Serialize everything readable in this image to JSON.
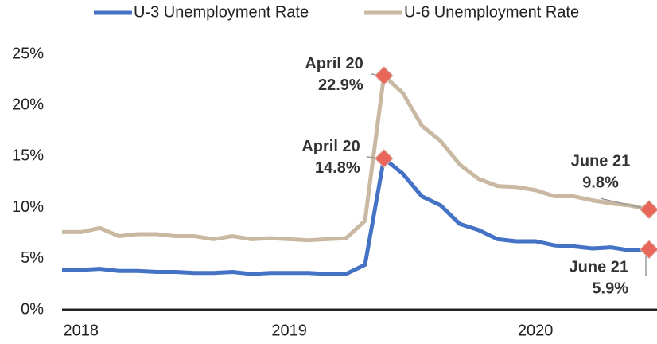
{
  "chart_data": {
    "type": "line",
    "categories": [
      null,
      "2018",
      null,
      null,
      null,
      null,
      null,
      null,
      null,
      null,
      null,
      null,
      "2019",
      null,
      null,
      null,
      null,
      null,
      null,
      null,
      null,
      null,
      null,
      null,
      null,
      "2020",
      null,
      null,
      null,
      null,
      null,
      null
    ],
    "series": [
      {
        "name": "U-3 Unemployment Rate",
        "color": "#4472c4",
        "values": [
          3.9,
          3.9,
          4.0,
          3.8,
          3.8,
          3.7,
          3.7,
          3.6,
          3.6,
          3.7,
          3.5,
          3.6,
          3.6,
          3.6,
          3.5,
          3.5,
          4.4,
          14.8,
          13.3,
          11.1,
          10.2,
          8.4,
          7.8,
          6.9,
          6.7,
          6.7,
          6.3,
          6.2,
          6.0,
          6.1,
          5.8,
          5.9
        ],
        "point_labels": [
          null,
          null,
          null,
          null,
          null,
          null,
          null,
          null,
          null,
          null,
          null,
          null,
          null,
          null,
          null,
          null,
          null,
          "April 20",
          null,
          null,
          null,
          null,
          null,
          null,
          null,
          null,
          null,
          null,
          null,
          null,
          null,
          "June 21"
        ],
        "value_labels": [
          null,
          null,
          null,
          null,
          null,
          null,
          null,
          null,
          null,
          null,
          null,
          null,
          null,
          null,
          null,
          null,
          null,
          "14.8%",
          null,
          null,
          null,
          null,
          null,
          null,
          null,
          null,
          null,
          null,
          null,
          null,
          null,
          "5.9%"
        ]
      },
      {
        "name": "U-6 Unemployment Rate",
        "color": "#c9b9a3",
        "values": [
          7.6,
          7.6,
          8.0,
          7.2,
          7.4,
          7.4,
          7.2,
          7.2,
          6.9,
          7.2,
          6.9,
          7.0,
          6.9,
          6.8,
          6.9,
          7.0,
          8.7,
          22.9,
          21.2,
          18.0,
          16.5,
          14.2,
          12.8,
          12.1,
          12.0,
          11.7,
          11.1,
          11.1,
          10.7,
          10.4,
          10.2,
          9.8
        ],
        "point_labels": [
          null,
          null,
          null,
          null,
          null,
          null,
          null,
          null,
          null,
          null,
          null,
          null,
          null,
          null,
          null,
          null,
          null,
          "April 20",
          null,
          null,
          null,
          null,
          null,
          null,
          null,
          null,
          null,
          null,
          null,
          null,
          null,
          "June 21"
        ],
        "value_labels": [
          null,
          null,
          null,
          null,
          null,
          null,
          null,
          null,
          null,
          null,
          null,
          null,
          null,
          null,
          null,
          null,
          null,
          "22.9%",
          null,
          null,
          null,
          null,
          null,
          null,
          null,
          null,
          null,
          null,
          null,
          null,
          null,
          "9.8%"
        ]
      }
    ],
    "marker_color": "#e8665a",
    "ylim": [
      0,
      25
    ],
    "yticks": [
      {
        "value": 0,
        "label": "0%"
      },
      {
        "value": 5,
        "label": "5%"
      },
      {
        "value": 10,
        "label": "10%"
      },
      {
        "value": 15,
        "label": "15%"
      },
      {
        "value": 20,
        "label": "20%"
      },
      {
        "value": 25,
        "label": "25%"
      }
    ],
    "grid": false,
    "legend": "top"
  }
}
